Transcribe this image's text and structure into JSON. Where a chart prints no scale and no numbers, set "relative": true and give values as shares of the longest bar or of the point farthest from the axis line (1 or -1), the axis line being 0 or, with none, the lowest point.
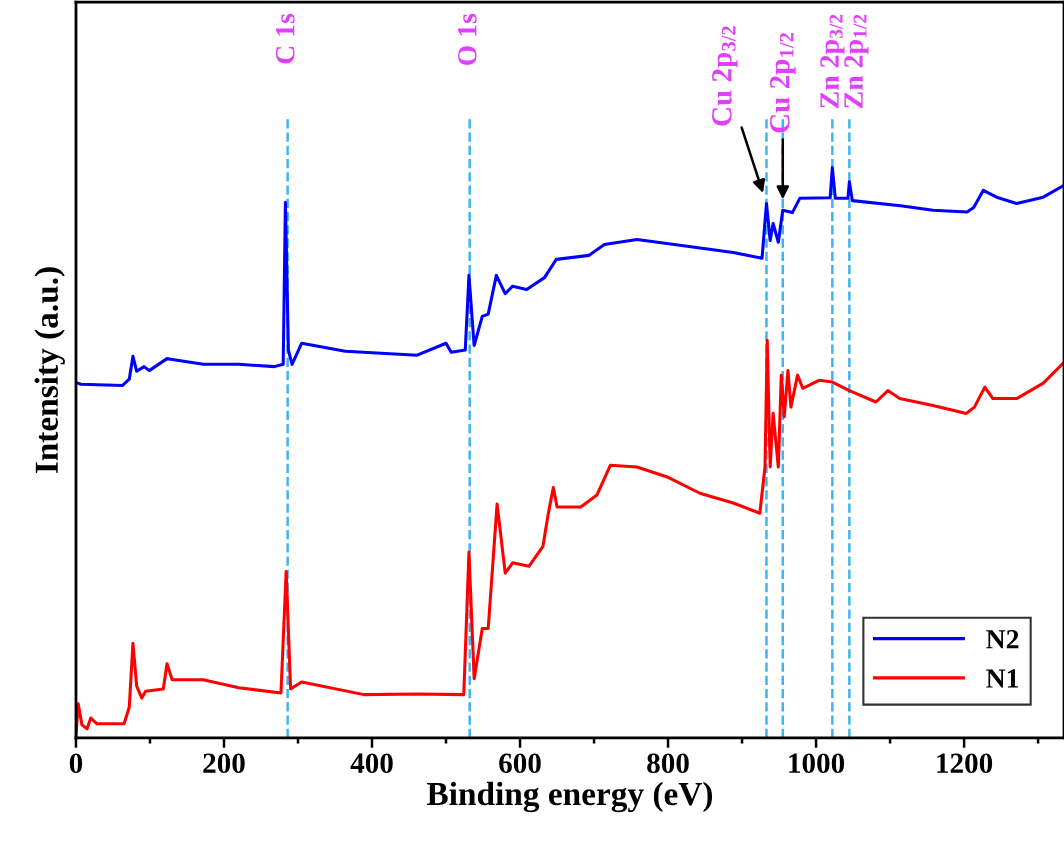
{
  "chart_data": {
    "type": "line",
    "xlabel": "Binding energy (eV)",
    "ylabel": "Intensity (a.u.)",
    "relative": true,
    "xlim": [
      0,
      1335
    ],
    "xticks": [
      0,
      200,
      400,
      600,
      800,
      1000,
      1200
    ],
    "tick_labels": "x",
    "legend": "bottom right",
    "grid": false,
    "line_style": "solid",
    "series": [
      {
        "name": "N2",
        "color": "#0000ff",
        "x": [
          0,
          7,
          63,
          72,
          77,
          82,
          92,
          99,
          123,
          128,
          172,
          220,
          268,
          280,
          283,
          287,
          292,
          305,
          364,
          461,
          500,
          507,
          526,
          531,
          538,
          549,
          557,
          568,
          580,
          590,
          609,
          633,
          649,
          693,
          714,
          758,
          821,
          888,
          927,
          933,
          938,
          942,
          949,
          955,
          968,
          978,
          1019,
          1022,
          1026,
          1043,
          1045,
          1049,
          1114,
          1158,
          1204,
          1213,
          1226,
          1244,
          1271,
          1307,
          1334
        ],
        "values": [
          0.623,
          0.62,
          0.618,
          0.629,
          0.669,
          0.643,
          0.651,
          0.644,
          0.665,
          0.664,
          0.655,
          0.655,
          0.651,
          0.655,
          0.939,
          0.68,
          0.655,
          0.692,
          0.678,
          0.671,
          0.692,
          0.676,
          0.68,
          0.811,
          0.688,
          0.739,
          0.743,
          0.811,
          0.779,
          0.792,
          0.786,
          0.807,
          0.839,
          0.846,
          0.865,
          0.874,
          0.863,
          0.851,
          0.841,
          0.937,
          0.872,
          0.902,
          0.869,
          0.925,
          0.921,
          0.946,
          0.947,
          1.0,
          0.946,
          0.946,
          0.975,
          0.942,
          0.933,
          0.925,
          0.922,
          0.93,
          0.96,
          0.948,
          0.937,
          0.948,
          0.968
        ]
      },
      {
        "name": "N1",
        "color": "#ff0000",
        "x": [
          0,
          3,
          8,
          15,
          20,
          28,
          65,
          72,
          77,
          82,
          89,
          94,
          118,
          123,
          130,
          172,
          220,
          277,
          284,
          290,
          305,
          389,
          461,
          524,
          531,
          538,
          549,
          557,
          569,
          580,
          590,
          612,
          631,
          638,
          645,
          650,
          682,
          704,
          722,
          758,
          798,
          843,
          888,
          924,
          931,
          934,
          938,
          942,
          949,
          953,
          957,
          962,
          966,
          975,
          982,
          1004,
          1022,
          1045,
          1081,
          1097,
          1113,
          1158,
          1203,
          1214,
          1228,
          1239,
          1271,
          1307,
          1334
        ],
        "values": [
          0.004,
          0.06,
          0.023,
          0.016,
          0.035,
          0.025,
          0.025,
          0.054,
          0.166,
          0.091,
          0.07,
          0.082,
          0.086,
          0.13,
          0.102,
          0.102,
          0.088,
          0.079,
          0.292,
          0.086,
          0.098,
          0.076,
          0.077,
          0.076,
          0.326,
          0.104,
          0.192,
          0.192,
          0.41,
          0.289,
          0.307,
          0.301,
          0.336,
          0.392,
          0.439,
          0.405,
          0.405,
          0.426,
          0.478,
          0.475,
          0.458,
          0.429,
          0.412,
          0.394,
          0.475,
          0.697,
          0.475,
          0.569,
          0.475,
          0.636,
          0.563,
          0.644,
          0.58,
          0.636,
          0.613,
          0.627,
          0.624,
          0.609,
          0.589,
          0.609,
          0.595,
          0.583,
          0.569,
          0.58,
          0.615,
          0.595,
          0.595,
          0.622,
          0.657
        ]
      }
    ],
    "ref_lines": [
      {
        "axis": "x",
        "value": 286,
        "label": "C 1s",
        "color": "#3eb4f0",
        "line_style": "dashed"
      },
      {
        "axis": "x",
        "value": 532,
        "label": "O 1s",
        "color": "#3eb4f0",
        "line_style": "dashed"
      },
      {
        "axis": "x",
        "value": 933,
        "label": null,
        "color": "#3eb4f0",
        "line_style": "dashed"
      },
      {
        "axis": "x",
        "value": 955,
        "label": null,
        "color": "#3eb4f0",
        "line_style": "dashed"
      },
      {
        "axis": "x",
        "value": 1022,
        "label": "Zn 2p$_{3/2}$",
        "color": "#3eb4f0",
        "line_style": "dashed"
      },
      {
        "axis": "x",
        "value": 1045,
        "label": "Zn 2p$_{1/2}$",
        "color": "#3eb4f0",
        "line_style": "dashed"
      }
    ],
    "annotations": [
      {
        "text": "Cu 2p$_{3/2}$",
        "x": 933,
        "y": 0.937
      },
      {
        "text": "Cu 2p$_{1/2}$",
        "x": 955,
        "y": 0.925
      }
    ]
  }
}
